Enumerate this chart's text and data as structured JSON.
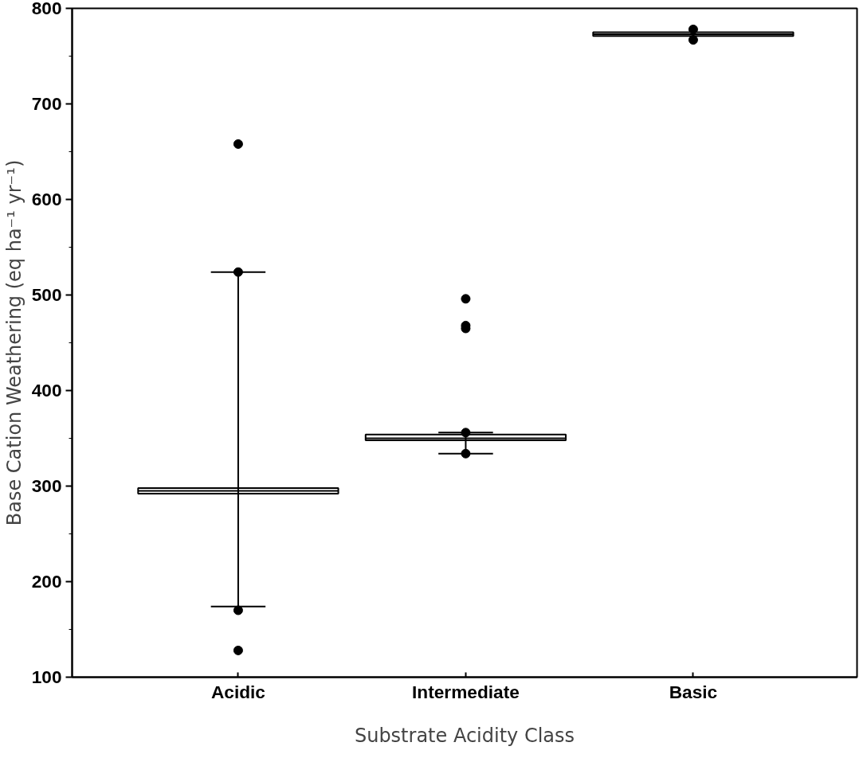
{
  "chart_data": {
    "type": "box",
    "xlabel": "Substrate Acidity Class",
    "ylabel": "Base Cation Weathering (eq ha⁻¹ yr⁻¹)",
    "categories": [
      "Acidic",
      "Intermediate",
      "Basic"
    ],
    "boxes": [
      {
        "low": 174,
        "q1": 292,
        "median": 295,
        "q3": 298,
        "high": 524,
        "outliers": [
          658,
          524,
          170,
          128
        ]
      },
      {
        "low": 334,
        "q1": 348,
        "median": 350,
        "q3": 354,
        "high": 356,
        "outliers": [
          496,
          468,
          465,
          356,
          334
        ]
      },
      {
        "low": 771,
        "q1": 771,
        "median": 773,
        "q3": 775,
        "high": 775,
        "outliers": [
          778,
          767
        ]
      }
    ],
    "color": "#000000",
    "ylim": [
      100,
      800
    ],
    "yticks": [
      100,
      200,
      300,
      400,
      500,
      600,
      700,
      800
    ],
    "grid": false
  }
}
